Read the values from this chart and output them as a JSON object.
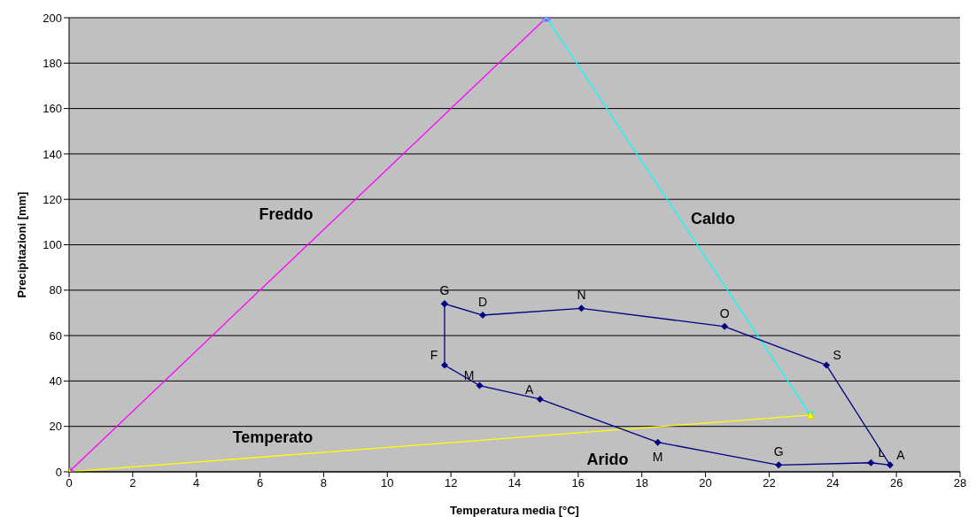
{
  "chart_data": {
    "type": "line",
    "xlabel": "Temperatura media [°C]",
    "ylabel": "Precipitazioni [mm]",
    "xlim": [
      0,
      28
    ],
    "xticks": [
      0,
      2,
      4,
      6,
      8,
      10,
      12,
      14,
      16,
      18,
      20,
      22,
      24,
      26,
      28
    ],
    "ylim": [
      0,
      200
    ],
    "yticks": [
      0,
      20,
      40,
      60,
      80,
      100,
      120,
      140,
      160,
      180,
      200
    ],
    "grid": "y",
    "series": [
      {
        "color": "#ff00ff",
        "marker": "square",
        "x": [
          0,
          15
        ],
        "values": [
          0,
          200
        ]
      },
      {
        "color": "#00ffff",
        "marker": "cross",
        "x": [
          15,
          23.3
        ],
        "values": [
          200,
          25
        ]
      },
      {
        "color": "#ffff00",
        "marker": "triangle",
        "x": [
          0,
          23.3
        ],
        "values": [
          0,
          25
        ]
      },
      {
        "type": "scatter",
        "line_style": "solid",
        "color": "#000080",
        "marker": "diamond",
        "x": [
          11.8,
          11.8,
          12.9,
          14.8,
          18.5,
          22.3,
          25.2,
          25.8,
          23.8,
          20.6,
          16.1,
          13,
          11.8
        ],
        "values": [
          74,
          47,
          38,
          32,
          13,
          3,
          4,
          3,
          47,
          64,
          72,
          69,
          74
        ],
        "value_labels": [
          "G",
          "F",
          "M",
          "A",
          "M",
          "G",
          "L",
          "A",
          "S",
          "O",
          "N",
          "D",
          null
        ]
      }
    ],
    "annotations": [
      "Freddo",
      "Caldo",
      "Temperato",
      "Arido"
    ]
  }
}
